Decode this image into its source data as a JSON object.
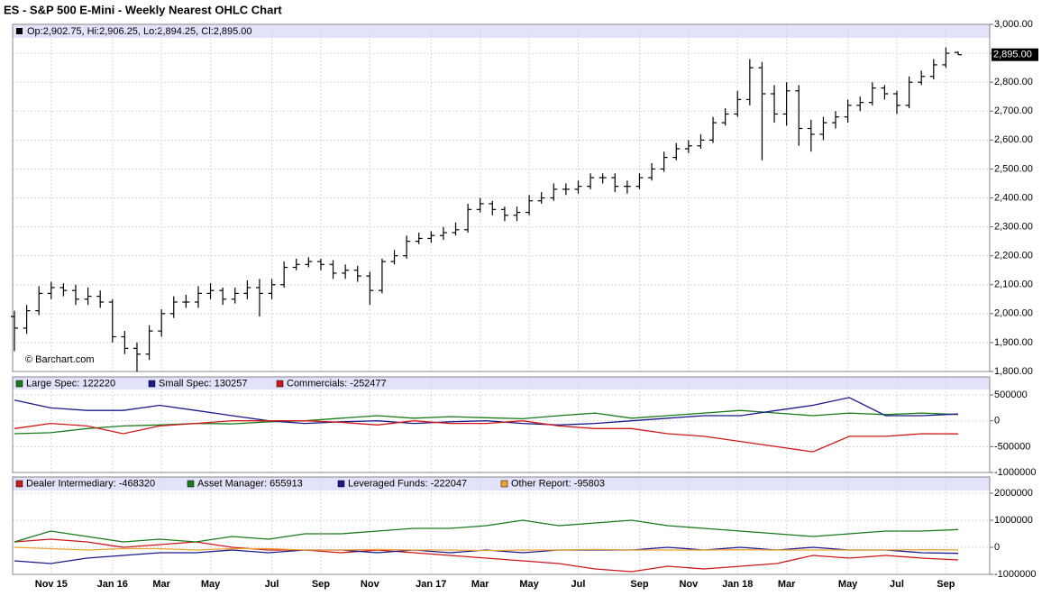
{
  "title": "ES - S&P 500 E-Mini - Weekly Nearest OHLC Chart",
  "watermark": "© Barchart.com",
  "chart_data": [
    {
      "type": "ohlc",
      "legend_text": "Op:2,902.75, Hi:2,906.25, Lo:2,894.25, Cl:2,895.00",
      "last_price_label": "2,895.00",
      "color": "#000000",
      "categories": [
        null,
        null,
        null,
        "Nov 15",
        null,
        null,
        null,
        null,
        "Jan 16",
        null,
        null,
        null,
        "Mar",
        null,
        null,
        null,
        "May",
        null,
        null,
        null,
        null,
        "Jul",
        null,
        null,
        null,
        "Sep",
        null,
        null,
        null,
        "Nov",
        null,
        null,
        null,
        null,
        "Jan 17",
        null,
        null,
        null,
        "Mar",
        null,
        null,
        null,
        "May",
        null,
        null,
        null,
        "Jul",
        null,
        null,
        null,
        null,
        "Sep",
        null,
        null,
        null,
        "Nov",
        null,
        null,
        null,
        "Jan 18",
        null,
        null,
        null,
        "Mar",
        null,
        null,
        null,
        null,
        "May",
        null,
        null,
        null,
        "Jul",
        null,
        null,
        null,
        "Sep",
        null
      ],
      "open": [
        1990,
        1950,
        2010,
        2070,
        2090,
        2080,
        2050,
        2060,
        2040,
        1920,
        1880,
        1860,
        1940,
        2000,
        2040,
        2040,
        2070,
        2080,
        2050,
        2070,
        2090,
        2070,
        2100,
        2160,
        2170,
        2180,
        2170,
        2140,
        2150,
        2130,
        2080,
        2180,
        2200,
        2250,
        2260,
        2270,
        2280,
        2290,
        2360,
        2380,
        2360,
        2340,
        2350,
        2390,
        2400,
        2430,
        2430,
        2440,
        2470,
        2470,
        2440,
        2440,
        2470,
        2500,
        2540,
        2570,
        2580,
        2600,
        2660,
        2690,
        2740,
        2850,
        2760,
        2690,
        2770,
        2640,
        2620,
        2660,
        2680,
        2720,
        2730,
        2780,
        2760,
        2720,
        2800,
        2820,
        2860,
        2902.75
      ],
      "high": [
        2010,
        2030,
        2095,
        2110,
        2105,
        2100,
        2090,
        2080,
        2050,
        1940,
        1900,
        1960,
        2015,
        2060,
        2065,
        2095,
        2105,
        2090,
        2090,
        2115,
        2120,
        2120,
        2180,
        2190,
        2195,
        2190,
        2185,
        2170,
        2165,
        2145,
        2190,
        2220,
        2270,
        2280,
        2285,
        2300,
        2315,
        2380,
        2400,
        2390,
        2370,
        2370,
        2410,
        2420,
        2450,
        2450,
        2460,
        2485,
        2485,
        2485,
        2460,
        2485,
        2520,
        2560,
        2590,
        2600,
        2620,
        2680,
        2710,
        2770,
        2880,
        2870,
        2790,
        2800,
        2790,
        2670,
        2680,
        2700,
        2740,
        2750,
        2800,
        2790,
        2770,
        2820,
        2840,
        2880,
        2920,
        2906.25
      ],
      "low": [
        1870,
        1930,
        1995,
        2050,
        2060,
        2030,
        2030,
        2020,
        1900,
        1860,
        1800,
        1840,
        1920,
        1985,
        2020,
        2020,
        2050,
        2030,
        2035,
        2050,
        1990,
        2050,
        2090,
        2150,
        2160,
        2150,
        2120,
        2120,
        2110,
        2030,
        2070,
        2170,
        2190,
        2240,
        2245,
        2255,
        2270,
        2280,
        2350,
        2340,
        2320,
        2320,
        2340,
        2380,
        2390,
        2410,
        2415,
        2430,
        2450,
        2420,
        2415,
        2430,
        2460,
        2490,
        2530,
        2555,
        2570,
        2590,
        2650,
        2680,
        2720,
        2530,
        2660,
        2650,
        2580,
        2560,
        2600,
        2640,
        2660,
        2700,
        2720,
        2740,
        2690,
        2710,
        2790,
        2810,
        2850,
        2894.25
      ],
      "close": [
        1950,
        2010,
        2070,
        2090,
        2080,
        2050,
        2060,
        2040,
        1920,
        1880,
        1860,
        1940,
        2000,
        2040,
        2040,
        2070,
        2080,
        2050,
        2070,
        2090,
        2070,
        2100,
        2160,
        2170,
        2180,
        2170,
        2140,
        2150,
        2130,
        2080,
        2180,
        2200,
        2250,
        2260,
        2270,
        2280,
        2290,
        2360,
        2380,
        2360,
        2340,
        2350,
        2390,
        2400,
        2430,
        2430,
        2440,
        2470,
        2470,
        2440,
        2440,
        2470,
        2500,
        2540,
        2570,
        2580,
        2600,
        2660,
        2690,
        2740,
        2850,
        2760,
        2690,
        2770,
        2640,
        2620,
        2660,
        2680,
        2720,
        2730,
        2780,
        2760,
        2720,
        2800,
        2820,
        2860,
        2900,
        2895
      ],
      "ylim": [
        1800,
        3000
      ],
      "yticks": [
        {
          "value": 1800,
          "label": "1,800.00"
        },
        {
          "value": 1900,
          "label": "1,900.00"
        },
        {
          "value": 2000,
          "label": "2,000.00"
        },
        {
          "value": 2100,
          "label": "2,100.00"
        },
        {
          "value": 2200,
          "label": "2,200.00"
        },
        {
          "value": 2300,
          "label": "2,300.00"
        },
        {
          "value": 2400,
          "label": "2,400.00"
        },
        {
          "value": 2500,
          "label": "2,500.00"
        },
        {
          "value": 2600,
          "label": "2,600.00"
        },
        {
          "value": 2700,
          "label": "2,700.00"
        },
        {
          "value": 2800,
          "label": "2,800.00"
        },
        {
          "value": 2900,
          "label": "2,900.00"
        },
        {
          "value": 3000,
          "label": "3,000.00"
        }
      ],
      "grid": true
    },
    {
      "type": "line",
      "series": [
        {
          "name": "Large Spec: 122220",
          "color": "#1a7a1a",
          "values": [
            -250000,
            -230000,
            -150000,
            -100000,
            -80000,
            -50000,
            -60000,
            -20000,
            0,
            50000,
            100000,
            50000,
            80000,
            60000,
            40000,
            100000,
            150000,
            50000,
            100000,
            150000,
            200000,
            150000,
            100000,
            150000,
            120000,
            150000,
            122220
          ]
        },
        {
          "name": "Small Spec: 130257",
          "color": "#1a1a8c",
          "values": [
            400000,
            250000,
            200000,
            200000,
            300000,
            200000,
            100000,
            0,
            -50000,
            -20000,
            0,
            -50000,
            -20000,
            0,
            -50000,
            -80000,
            -50000,
            0,
            50000,
            100000,
            100000,
            200000,
            300000,
            450000,
            100000,
            100000,
            130257
          ]
        },
        {
          "name": "Commercials: -252477",
          "color": "#d01818",
          "values": [
            -150000,
            -50000,
            -100000,
            -250000,
            -100000,
            -50000,
            0,
            0,
            0,
            -30000,
            -80000,
            0,
            -50000,
            -50000,
            0,
            -100000,
            -150000,
            -150000,
            -250000,
            -300000,
            -400000,
            -500000,
            -600000,
            -300000,
            -300000,
            -250000,
            -252477
          ]
        }
      ],
      "ylim": [
        -1000000,
        850000
      ],
      "yticks": [
        -1000000,
        -500000,
        0,
        500000
      ],
      "grid": true
    },
    {
      "type": "line",
      "series": [
        {
          "name": "Dealer Intermediary: -468320",
          "color": "#d01818",
          "values": [
            200000,
            300000,
            200000,
            0,
            100000,
            200000,
            0,
            -100000,
            -100000,
            -200000,
            -100000,
            -200000,
            -300000,
            -400000,
            -500000,
            -600000,
            -800000,
            -900000,
            -700000,
            -800000,
            -700000,
            -600000,
            -300000,
            -400000,
            -300000,
            -400000,
            -468320
          ]
        },
        {
          "name": "Asset Manager: 655913",
          "color": "#1a7a1a",
          "values": [
            200000,
            600000,
            400000,
            200000,
            300000,
            200000,
            400000,
            300000,
            500000,
            500000,
            600000,
            700000,
            700000,
            800000,
            1000000,
            800000,
            900000,
            1000000,
            800000,
            700000,
            600000,
            500000,
            400000,
            500000,
            600000,
            600000,
            655913
          ]
        },
        {
          "name": "Leveraged Funds: -222047",
          "color": "#1a1a8c",
          "values": [
            -500000,
            -600000,
            -400000,
            -300000,
            -200000,
            -200000,
            -100000,
            -200000,
            -100000,
            -100000,
            -200000,
            -100000,
            -200000,
            -100000,
            -200000,
            -100000,
            -100000,
            -100000,
            0,
            -100000,
            0,
            -100000,
            0,
            -100000,
            -100000,
            -200000,
            -222047
          ]
        },
        {
          "name": "Other Report: -95803",
          "color": "#f0a030",
          "values": [
            0,
            -50000,
            -100000,
            -50000,
            -50000,
            -100000,
            -50000,
            -50000,
            -100000,
            -100000,
            -80000,
            -100000,
            -100000,
            -120000,
            -100000,
            -100000,
            -80000,
            -100000,
            -100000,
            -100000,
            -90000,
            -100000,
            -100000,
            -100000,
            -95803,
            -90000,
            -95803
          ]
        }
      ],
      "ylim": [
        -1000000,
        2600000
      ],
      "yticks": [
        -1000000,
        0,
        1000000,
        2000000
      ],
      "grid": true
    }
  ]
}
